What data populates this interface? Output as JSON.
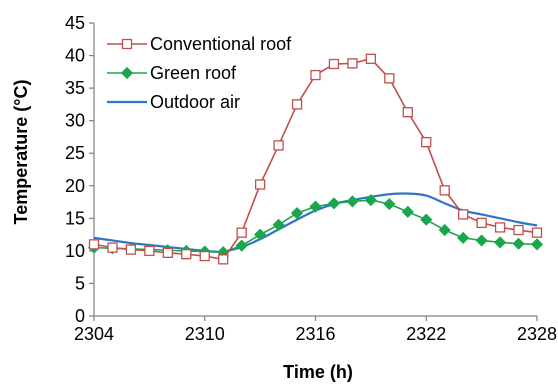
{
  "chart_data": {
    "type": "line",
    "xlabel": "Time (h)",
    "ylabel": "Temperature (°C)",
    "xlim": [
      2304,
      2328
    ],
    "ylim": [
      0,
      45
    ],
    "xticks": [
      "2304",
      "2310",
      "2316",
      "2322",
      "2328"
    ],
    "yticks": [
      "0",
      "5",
      "10",
      "15",
      "20",
      "25",
      "30",
      "35",
      "40",
      "45"
    ],
    "grid": false,
    "legend_position": "top-left",
    "series": [
      {
        "name": "Conventional roof",
        "color": "#c0504d",
        "marker": "square-open",
        "x": [
          2304,
          2305,
          2306,
          2307,
          2308,
          2309,
          2310,
          2311,
          2312,
          2313,
          2314,
          2315,
          2316,
          2317,
          2318,
          2319,
          2320,
          2321,
          2322,
          2323,
          2324,
          2325,
          2326,
          2327,
          2328
        ],
        "y": [
          11.0,
          10.5,
          10.2,
          10.0,
          9.7,
          9.5,
          9.2,
          8.7,
          12.8,
          20.2,
          26.2,
          32.5,
          37.0,
          38.7,
          38.8,
          39.5,
          36.5,
          31.3,
          26.7,
          19.3,
          15.6,
          14.3,
          13.6,
          13.2,
          12.8
        ]
      },
      {
        "name": "Green roof",
        "color": "#1aa64a",
        "marker": "diamond",
        "x": [
          2304,
          2305,
          2306,
          2307,
          2308,
          2309,
          2310,
          2311,
          2312,
          2313,
          2314,
          2315,
          2316,
          2317,
          2318,
          2319,
          2320,
          2321,
          2322,
          2323,
          2324,
          2325,
          2326,
          2327,
          2328
        ],
        "y": [
          10.5,
          10.4,
          10.3,
          10.2,
          10.1,
          10.0,
          9.9,
          9.8,
          10.8,
          12.5,
          14.0,
          15.8,
          16.8,
          17.3,
          17.6,
          17.8,
          17.2,
          16.0,
          14.8,
          13.2,
          12.0,
          11.6,
          11.3,
          11.1,
          11.0
        ]
      },
      {
        "name": "Outdoor air",
        "color": "#2e75c7",
        "marker": "none",
        "x": [
          2304,
          2305,
          2306,
          2307,
          2308,
          2309,
          2310,
          2311,
          2312,
          2313,
          2314,
          2315,
          2316,
          2317,
          2318,
          2319,
          2320,
          2321,
          2322,
          2323,
          2324,
          2325,
          2326,
          2327,
          2328
        ],
        "y": [
          12.0,
          11.6,
          11.2,
          10.9,
          10.6,
          10.3,
          10.0,
          9.9,
          10.6,
          11.8,
          13.3,
          14.8,
          16.2,
          17.2,
          17.8,
          18.3,
          18.7,
          18.8,
          18.5,
          17.3,
          16.2,
          15.6,
          15.0,
          14.4,
          13.9
        ]
      }
    ]
  }
}
